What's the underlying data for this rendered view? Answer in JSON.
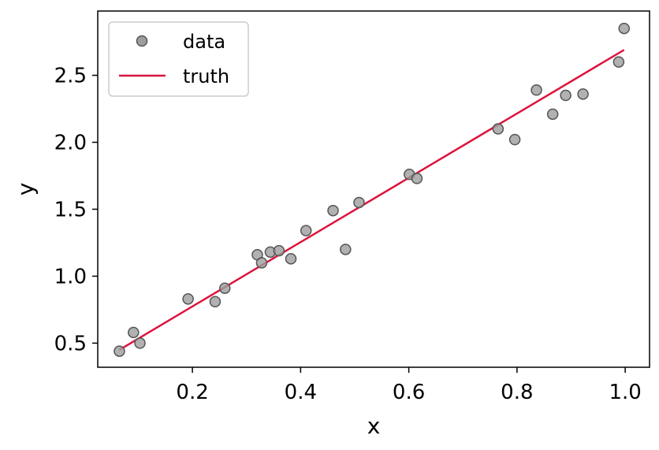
{
  "chart_data": {
    "type": "scatter",
    "xlabel": "x",
    "ylabel": "y",
    "xlim": [
      0.025,
      1.045
    ],
    "ylim": [
      0.32,
      2.98
    ],
    "xticks": [
      0.2,
      0.4,
      0.6,
      0.8,
      1.0
    ],
    "xtick_labels": [
      "0.2",
      "0.4",
      "0.6",
      "0.8",
      "1.0"
    ],
    "yticks": [
      0.5,
      1.0,
      1.5,
      2.0,
      2.5
    ],
    "ytick_labels": [
      "0.5",
      "1.0",
      "1.5",
      "2.0",
      "2.5"
    ],
    "grid": false,
    "legend_position": "top-left",
    "series": [
      {
        "name": "data",
        "kind": "scatter",
        "color": "#9e9e9e",
        "edge_color": "#555555",
        "points": [
          {
            "x": 0.065,
            "y": 0.44
          },
          {
            "x": 0.091,
            "y": 0.58
          },
          {
            "x": 0.103,
            "y": 0.5
          },
          {
            "x": 0.192,
            "y": 0.83
          },
          {
            "x": 0.242,
            "y": 0.81
          },
          {
            "x": 0.26,
            "y": 0.91
          },
          {
            "x": 0.32,
            "y": 1.16
          },
          {
            "x": 0.328,
            "y": 1.1
          },
          {
            "x": 0.344,
            "y": 1.18
          },
          {
            "x": 0.36,
            "y": 1.19
          },
          {
            "x": 0.382,
            "y": 1.13
          },
          {
            "x": 0.41,
            "y": 1.34
          },
          {
            "x": 0.46,
            "y": 1.49
          },
          {
            "x": 0.483,
            "y": 1.2
          },
          {
            "x": 0.508,
            "y": 1.55
          },
          {
            "x": 0.601,
            "y": 1.76
          },
          {
            "x": 0.615,
            "y": 1.73
          },
          {
            "x": 0.765,
            "y": 2.1
          },
          {
            "x": 0.796,
            "y": 2.02
          },
          {
            "x": 0.836,
            "y": 2.39
          },
          {
            "x": 0.866,
            "y": 2.21
          },
          {
            "x": 0.89,
            "y": 2.35
          },
          {
            "x": 0.922,
            "y": 2.36
          },
          {
            "x": 0.988,
            "y": 2.6
          },
          {
            "x": 0.998,
            "y": 2.85
          }
        ]
      },
      {
        "name": "truth",
        "kind": "line",
        "color": "#dc143c",
        "points": [
          {
            "x": 0.065,
            "y": 0.45
          },
          {
            "x": 0.998,
            "y": 2.69
          }
        ]
      }
    ]
  }
}
